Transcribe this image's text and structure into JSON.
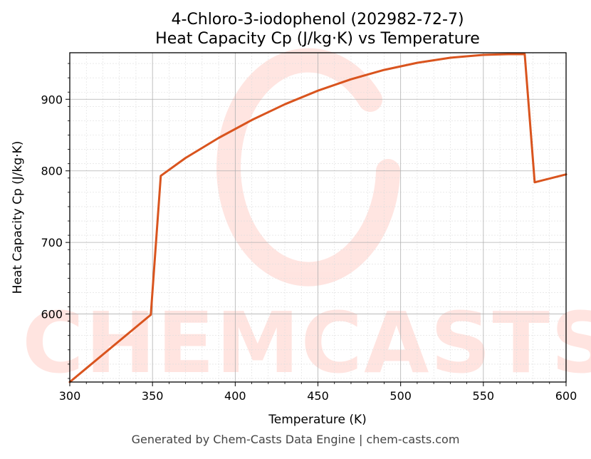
{
  "chart_data": {
    "type": "line",
    "title": "4-Chloro-3-iodophenol (202982-72-7)",
    "subtitle": "Heat Capacity Cp (J/kg·K) vs Temperature",
    "xlabel": "Temperature (K)",
    "ylabel": "Heat Capacity Cp (J/kg·K)",
    "xlim": [
      300,
      600
    ],
    "ylim": [
      505,
      965
    ],
    "xticks": [
      300,
      350,
      400,
      450,
      500,
      550,
      600
    ],
    "yticks": [
      600,
      700,
      800,
      900
    ],
    "grid": true,
    "legend": "none",
    "series": [
      {
        "color": "#d9541e",
        "x": [
          300,
          349,
          355,
          370,
          390,
          410,
          430,
          450,
          470,
          490,
          510,
          530,
          550,
          565,
          575,
          581,
          600
        ],
        "y": [
          505,
          599,
          793,
          818,
          846,
          871,
          893,
          912,
          928,
          941,
          951,
          958,
          962,
          963,
          963,
          784,
          795
        ]
      }
    ]
  },
  "watermark": "CHEMCASTS",
  "footer": "Generated by Chem-Casts Data Engine | chem-casts.com"
}
